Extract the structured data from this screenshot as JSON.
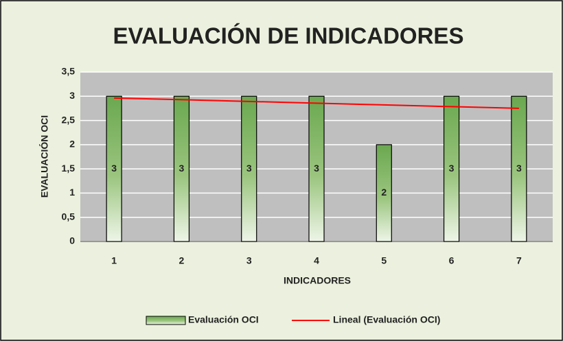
{
  "chart_data": {
    "type": "bar",
    "title": "EVALUACIÓN DE INDICADORES",
    "x_label": "INDICADORES",
    "y_label": "EVALUACIÓN OCI",
    "categories": [
      "1",
      "2",
      "3",
      "4",
      "5",
      "6",
      "7"
    ],
    "series": [
      {
        "name": "Evaluación OCI",
        "type": "bar",
        "color": "#70ad47",
        "values": [
          3,
          3,
          3,
          3,
          2,
          3,
          3
        ]
      },
      {
        "name": "Lineal (Evaluación OCI)",
        "type": "line",
        "color": "#ff0000",
        "values": [
          2.964,
          2.929,
          2.893,
          2.857,
          2.821,
          2.786,
          2.75
        ]
      }
    ],
    "ylim": [
      0,
      3.5
    ],
    "yticks": [
      0,
      {
        "value": 0.5,
        "label": "0,5"
      },
      1,
      {
        "value": 1.5,
        "label": "1,5"
      },
      2,
      {
        "value": 2.5,
        "label": "2,5"
      },
      3,
      {
        "value": 3.5,
        "label": "3,5"
      }
    ],
    "grid": true,
    "legend": "bottom"
  }
}
